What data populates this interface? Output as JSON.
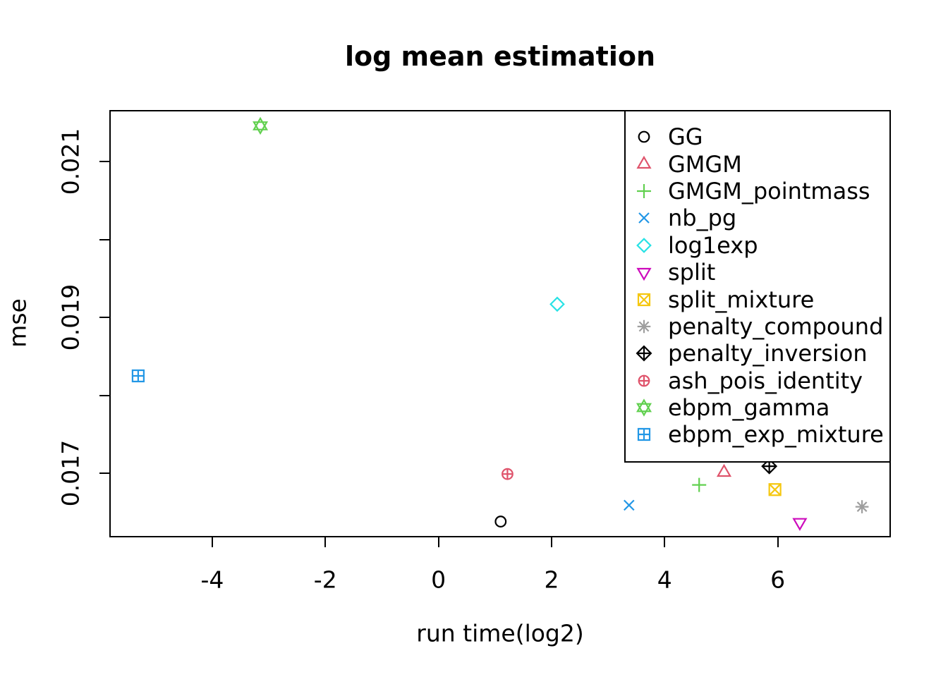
{
  "chart_data": {
    "type": "scatter",
    "title": "log mean estimation",
    "xlabel": "run time(log2)",
    "ylabel": "mse",
    "xlim": [
      -5.82,
      8.0
    ],
    "ylim": [
      0.016177,
      0.021663
    ],
    "x_ticks": [
      -4,
      -2,
      0,
      2,
      4,
      6
    ],
    "x_tick_labels": [
      "-4",
      "-2",
      "0",
      "2",
      "4",
      "6"
    ],
    "y_ticks": [
      0.017,
      0.018,
      0.019,
      0.02,
      0.021
    ],
    "y_tick_labels": [
      "0.017",
      "",
      "0.019",
      "",
      "0.021"
    ],
    "grid": false,
    "legend_position": "top-right",
    "series": [
      {
        "name": "GG",
        "symbol": "circle",
        "pch": 1,
        "color": "#000000",
        "x": 1.1,
        "y": 0.01638
      },
      {
        "name": "GMGM",
        "symbol": "triangle-up",
        "pch": 2,
        "color": "#DF536B",
        "x": 5.05,
        "y": 0.01701
      },
      {
        "name": "GMGM_pointmass",
        "symbol": "plus",
        "pch": 3,
        "color": "#61D04F",
        "x": 4.61,
        "y": 0.01685
      },
      {
        "name": "nb_pg",
        "symbol": "x",
        "pch": 4,
        "color": "#2297E6",
        "x": 3.37,
        "y": 0.01659
      },
      {
        "name": "log1exp",
        "symbol": "diamond",
        "pch": 5,
        "color": "#28E2E5",
        "x": 2.1,
        "y": 0.01917
      },
      {
        "name": "split",
        "symbol": "triangle-down",
        "pch": 6,
        "color": "#CD0BBC",
        "x": 6.39,
        "y": 0.01637
      },
      {
        "name": "split_mixture",
        "symbol": "square-x",
        "pch": 7,
        "color": "#F5C710",
        "x": 5.95,
        "y": 0.01679
      },
      {
        "name": "penalty_compound",
        "symbol": "asterisk",
        "pch": 8,
        "color": "#9E9E9E",
        "x": 7.49,
        "y": 0.01657
      },
      {
        "name": "penalty_inversion",
        "symbol": "diamond-plus",
        "pch": 9,
        "color": "#000000",
        "x": 5.85,
        "y": 0.01709
      },
      {
        "name": "ash_pois_identity",
        "symbol": "circle-plus",
        "pch": 10,
        "color": "#DF536B",
        "x": 1.22,
        "y": 0.01699
      },
      {
        "name": "ebpm_gamma",
        "symbol": "hexagram",
        "pch": 11,
        "color": "#61D04F",
        "x": -3.15,
        "y": 0.02146
      },
      {
        "name": "ebpm_exp_mixture",
        "symbol": "square-plus",
        "pch": 12,
        "color": "#2297E6",
        "x": -5.31,
        "y": 0.01825
      }
    ]
  }
}
